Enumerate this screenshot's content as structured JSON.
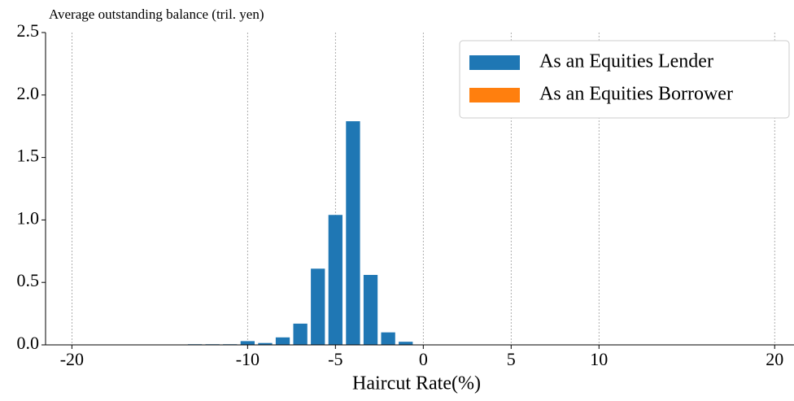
{
  "chart_data": {
    "type": "bar",
    "title": "Average outstanding balance (tril. yen)",
    "x_label": "Haircut Rate(%)",
    "x": [
      -13,
      -12,
      -11,
      -10,
      -9,
      -8,
      -7,
      -6,
      -5,
      -4,
      -3,
      -2,
      -1,
      8
    ],
    "series": [
      {
        "name": "As an Equities Lender",
        "color": "#1f77b4",
        "values": [
          0.005,
          0.005,
          0.005,
          0.03,
          0.015,
          0.06,
          0.17,
          0.61,
          1.04,
          1.79,
          0.56,
          0.1,
          0.025,
          0.003
        ]
      },
      {
        "name": "As an Equities Borrower",
        "color": "#ff7f0e",
        "values": [
          0,
          0,
          0,
          0,
          0,
          0,
          0,
          0,
          0,
          0,
          0,
          0,
          0,
          0
        ]
      }
    ],
    "xlim": [
      -21.5,
      21.1
    ],
    "xticks": [
      -20,
      -10,
      -5,
      0,
      5,
      10,
      20
    ],
    "ylim": [
      0,
      2.5
    ],
    "yticks": [
      {
        "value": 0,
        "label": "0.0"
      },
      {
        "value": 0.5,
        "label": "0.5"
      },
      {
        "value": 1,
        "label": "1.0"
      },
      {
        "value": 1.5,
        "label": "1.5"
      },
      {
        "value": 2,
        "label": "2.0"
      },
      {
        "value": 2.5,
        "label": "2.5"
      }
    ],
    "grid": "x",
    "legend": "upper right"
  }
}
